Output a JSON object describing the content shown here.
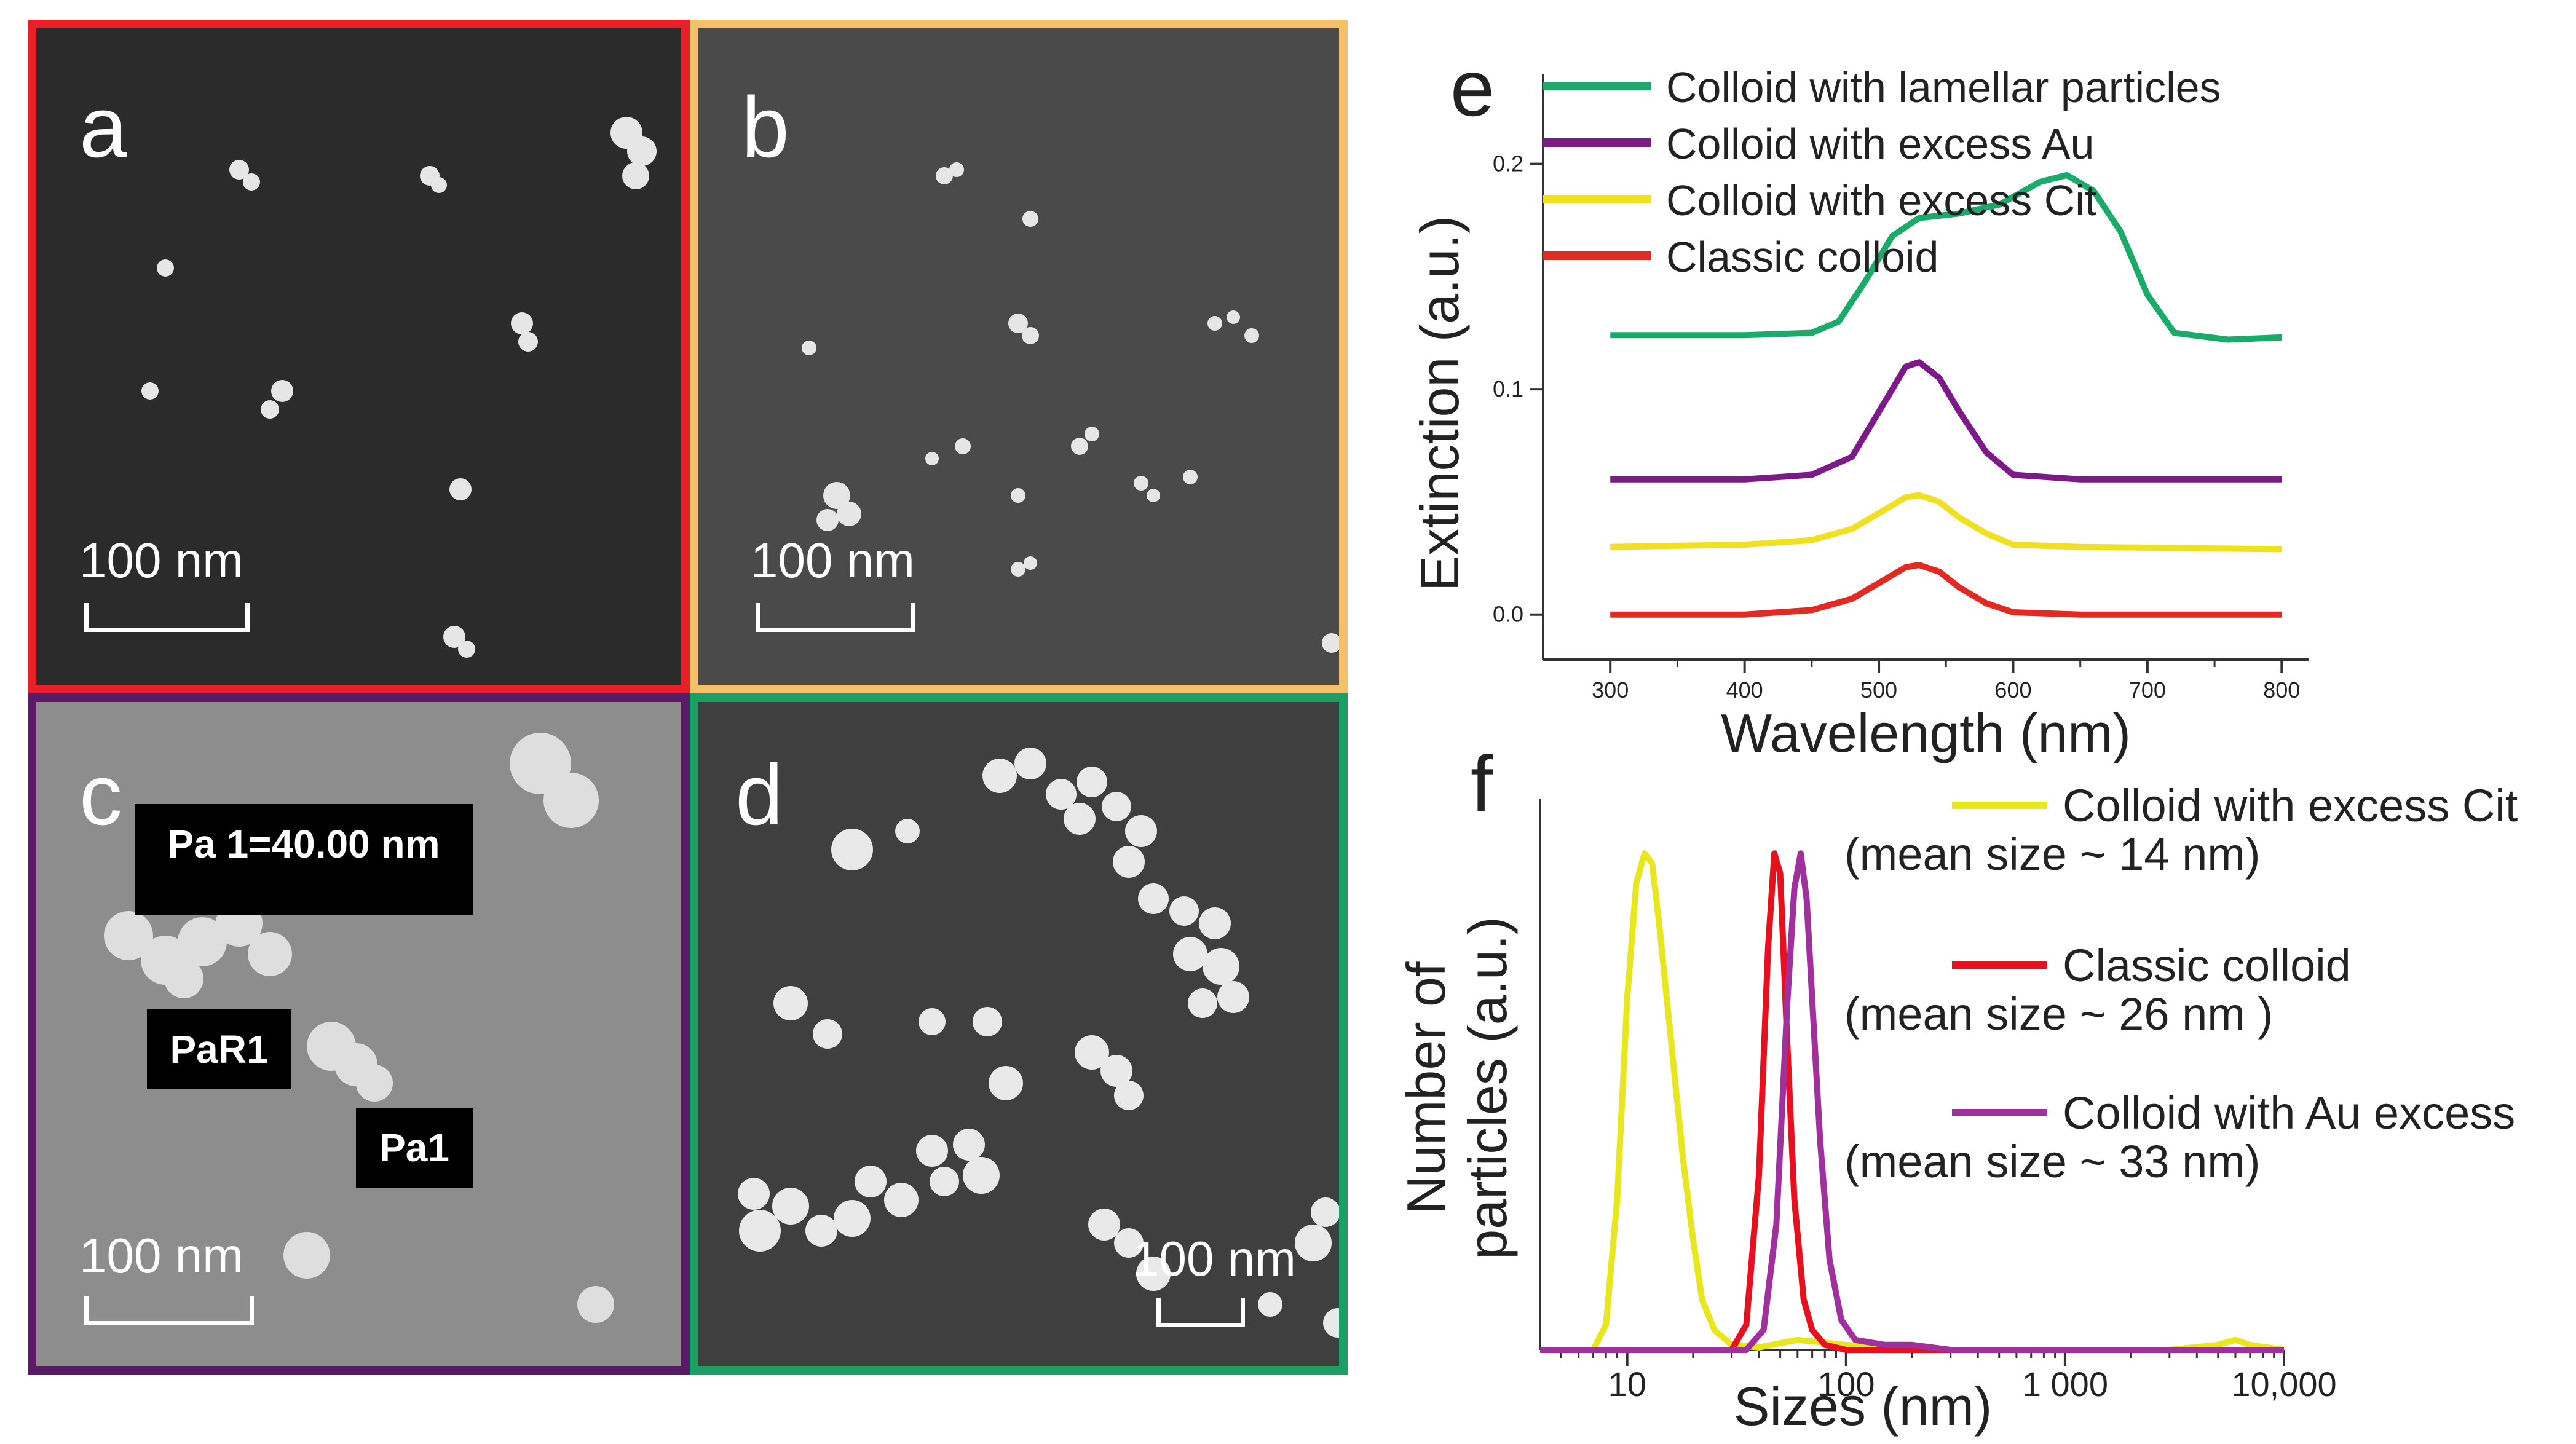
{
  "panels": {
    "a": {
      "label": "a",
      "scale": "100 nm",
      "border": "#e8202a",
      "bg": "#2b2b2b"
    },
    "b": {
      "label": "b",
      "scale": "100 nm",
      "border": "#f5c06a",
      "bg": "#4a4a4a"
    },
    "c": {
      "label": "c",
      "scale": "100 nm",
      "border": "#5b1a66",
      "bg": "#8d8d8d",
      "measure_box": "Pa 1=40.00 nm",
      "ref_label": "PaR1",
      "point_label": "Pa1"
    },
    "d": {
      "label": "d",
      "scale": "100 nm",
      "border": "#1aa063",
      "bg": "#3f3f3f"
    }
  },
  "chart_data": [
    {
      "panel": "e",
      "type": "line",
      "xlabel": "Wavelength (nm)",
      "ylabel": "Extinction (a.u.)",
      "xlim": [
        250,
        820
      ],
      "ylim": [
        -0.02,
        0.24
      ],
      "xticks": [
        300,
        400,
        500,
        600,
        700,
        800
      ],
      "yticks": [
        0.0,
        0.1,
        0.2
      ],
      "xtick_labels": [
        "300",
        "400",
        "500",
        "600",
        "700",
        "800"
      ],
      "ytick_labels": [
        "0.0",
        "0.1",
        "0.2"
      ],
      "legend_position": "top-left",
      "series": [
        {
          "name": "Colloid with lamellar particles",
          "color": "#1aaa6a",
          "x": [
            300,
            350,
            400,
            450,
            470,
            490,
            510,
            530,
            560,
            590,
            620,
            640,
            660,
            680,
            700,
            720,
            760,
            800
          ],
          "y": [
            0.124,
            0.124,
            0.124,
            0.125,
            0.13,
            0.148,
            0.168,
            0.176,
            0.178,
            0.182,
            0.192,
            0.195,
            0.188,
            0.17,
            0.142,
            0.125,
            0.122,
            0.123
          ]
        },
        {
          "name": "Colloid with excess Au",
          "color": "#7d1a8a",
          "x": [
            300,
            400,
            450,
            480,
            500,
            520,
            530,
            545,
            560,
            580,
            600,
            650,
            800
          ],
          "y": [
            0.06,
            0.06,
            0.062,
            0.07,
            0.09,
            0.11,
            0.112,
            0.105,
            0.09,
            0.072,
            0.062,
            0.06,
            0.06
          ]
        },
        {
          "name": "Colloid with excess Cit",
          "color": "#f0e020",
          "x": [
            300,
            400,
            450,
            480,
            500,
            520,
            530,
            545,
            560,
            580,
            600,
            650,
            800
          ],
          "y": [
            0.03,
            0.031,
            0.033,
            0.038,
            0.045,
            0.052,
            0.053,
            0.05,
            0.043,
            0.036,
            0.031,
            0.03,
            0.029
          ]
        },
        {
          "name": "Classic colloid",
          "color": "#e32a22",
          "x": [
            300,
            400,
            450,
            480,
            500,
            520,
            530,
            545,
            560,
            580,
            600,
            650,
            800
          ],
          "y": [
            0.0,
            0.0,
            0.002,
            0.007,
            0.014,
            0.021,
            0.022,
            0.019,
            0.012,
            0.005,
            0.001,
            0.0,
            0.0
          ]
        }
      ]
    },
    {
      "panel": "f",
      "type": "line",
      "xlabel": "Sizes (nm)",
      "ylabel_lines": [
        "Number of",
        "particles (a.u.)"
      ],
      "xscale": "log",
      "xlim": [
        4,
        10000
      ],
      "ylim": [
        0,
        1.0
      ],
      "xticks": [
        10,
        100,
        1000,
        10000
      ],
      "xtick_labels": [
        "10",
        "100",
        "1 000",
        "10,000"
      ],
      "series": [
        {
          "name": "Colloid with excess Cit",
          "note": "(mean size ~ 14 nm)",
          "color": "#e8e61c",
          "x": [
            4,
            7,
            8,
            9,
            10,
            11,
            12,
            13,
            14,
            16,
            18,
            20,
            22,
            25,
            30,
            40,
            60,
            100,
            200,
            1000,
            3000,
            5000,
            6000,
            7000,
            10000
          ],
          "y": [
            0,
            0,
            0.05,
            0.3,
            0.7,
            0.93,
            0.99,
            0.97,
            0.85,
            0.6,
            0.38,
            0.22,
            0.1,
            0.04,
            0.01,
            0.005,
            0.02,
            0.01,
            0,
            0,
            0,
            0.01,
            0.02,
            0.01,
            0
          ]
        },
        {
          "name": "Classic colloid",
          "color": "#e8101e",
          "x": [
            4,
            30,
            35,
            40,
            44,
            47,
            50,
            54,
            58,
            64,
            70,
            80,
            100,
            10000
          ],
          "y": [
            0,
            0,
            0.05,
            0.35,
            0.8,
            0.99,
            0.95,
            0.6,
            0.3,
            0.1,
            0.04,
            0.01,
            0,
            0
          ]
        },
        {
          "name": "Colloid with Au excess",
          "note": "(mean size ~ 33 nm)",
          "color": "#a0309e",
          "x": [
            4,
            35,
            42,
            48,
            54,
            58,
            62,
            66,
            70,
            76,
            84,
            95,
            110,
            150,
            200,
            300,
            10000
          ],
          "y": [
            0,
            0,
            0.04,
            0.25,
            0.7,
            0.92,
            0.99,
            0.9,
            0.7,
            0.42,
            0.18,
            0.06,
            0.02,
            0.01,
            0.01,
            0,
            0
          ]
        }
      ],
      "legend_notes": {
        "classic": "(mean size ~ 26 nm )"
      }
    }
  ],
  "panel_letters": {
    "e": "e",
    "f": "f"
  }
}
